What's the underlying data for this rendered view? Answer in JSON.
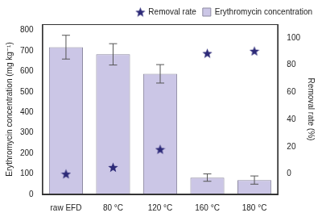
{
  "chart_data": {
    "type": "bar",
    "categories": [
      "raw EFD",
      "80 °C",
      "120 °C",
      "160 °C",
      "180 °C"
    ],
    "series": [
      {
        "name": "Erythromycin concentration",
        "type": "bar",
        "color": "#cbc6e6",
        "values": [
          718,
          683,
          588,
          82,
          70
        ],
        "errors": [
          58,
          52,
          45,
          18,
          20
        ]
      },
      {
        "name": "Removal rate",
        "type": "scatter",
        "marker": "star",
        "color": "#2d2a78",
        "axis": "y2",
        "values": [
          0,
          4.9,
          18.1,
          88.6,
          90.3
        ]
      }
    ],
    "ylabel": "Erythromycin concentration (mg kg⁻¹)",
    "y2label": "Removal rate (%)",
    "ylim": [
      0,
      830
    ],
    "yticks": [
      0,
      100,
      200,
      300,
      400,
      500,
      600,
      700,
      800
    ],
    "y2lim": [
      -15,
      110
    ],
    "y2ticks": [
      0,
      20,
      40,
      60,
      80,
      100
    ],
    "legend": "upper right",
    "grid": false
  }
}
